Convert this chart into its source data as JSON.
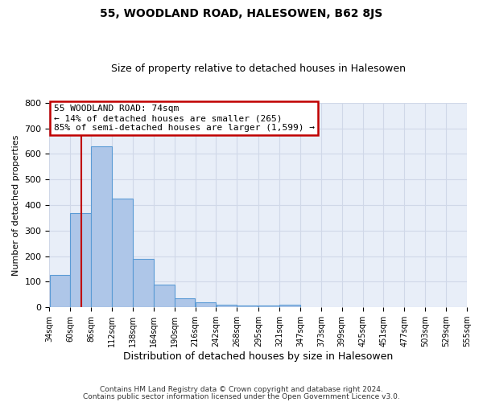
{
  "title": "55, WOODLAND ROAD, HALESOWEN, B62 8JS",
  "subtitle": "Size of property relative to detached houses in Halesowen",
  "xlabel": "Distribution of detached houses by size in Halesowen",
  "ylabel": "Number of detached properties",
  "bin_edges": [
    34,
    60,
    86,
    112,
    138,
    164,
    190,
    216,
    242,
    268,
    295,
    321,
    347,
    373,
    399,
    425,
    451,
    477,
    503,
    529,
    555
  ],
  "bar_heights": [
    125,
    370,
    630,
    425,
    190,
    88,
    35,
    18,
    10,
    8,
    8,
    10,
    0,
    0,
    0,
    0,
    0,
    0,
    0,
    0
  ],
  "bar_color": "#aec6e8",
  "bar_edge_color": "#5b9bd5",
  "property_line_x": 74,
  "property_line_color": "#c00000",
  "annotation_line1": "55 WOODLAND ROAD: 74sqm",
  "annotation_line2": "← 14% of detached houses are smaller (265)",
  "annotation_line3": "85% of semi-detached houses are larger (1,599) →",
  "annotation_box_color": "#ffffff",
  "annotation_box_edge_color": "#c00000",
  "ylim": [
    0,
    800
  ],
  "yticks": [
    0,
    100,
    200,
    300,
    400,
    500,
    600,
    700,
    800
  ],
  "grid_color": "#d0d8e8",
  "bg_color": "#e8eef8",
  "fig_bg_color": "#ffffff",
  "footer1": "Contains HM Land Registry data © Crown copyright and database right 2024.",
  "footer2": "Contains public sector information licensed under the Open Government Licence v3.0."
}
